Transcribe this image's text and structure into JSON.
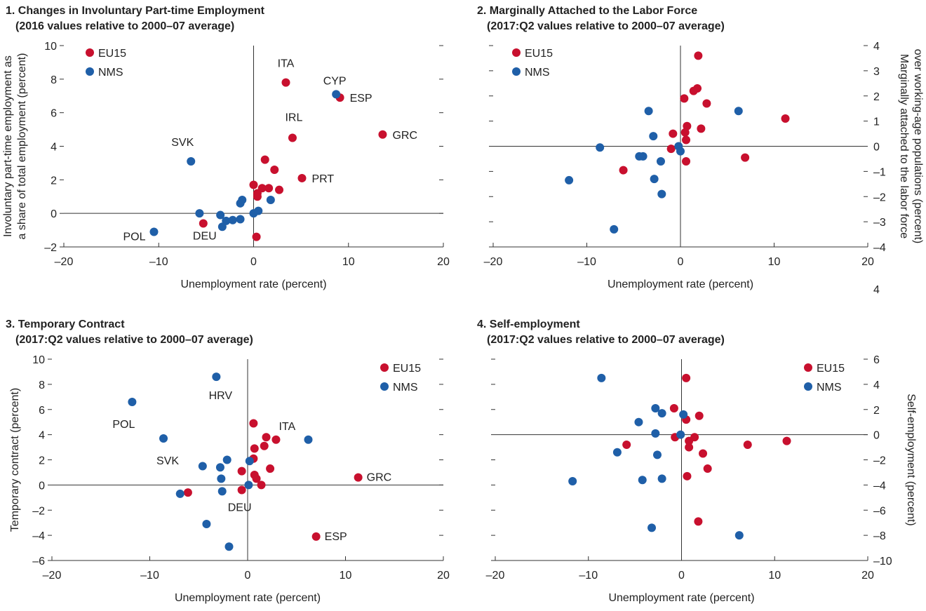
{
  "colors": {
    "EU15": "#c8102e",
    "NMS": "#1f5fa8",
    "axis": "#333333"
  },
  "chart_data": [
    {
      "type": "scatter",
      "title": "1. Changes in Involuntary Part-time Employment",
      "subtitle": "(2016 values relative to 2000–07 average)",
      "xlabel": "Unemployment rate (percent)",
      "ylabel": [
        "Involuntary part-time employment as",
        "a share of total employment (percent)"
      ],
      "xlim": [
        -20,
        20
      ],
      "ylim": [
        -2,
        10
      ],
      "xticks": [
        -20,
        -10,
        0,
        10,
        20
      ],
      "yticks": [
        -2,
        0,
        2,
        4,
        6,
        8,
        10
      ],
      "ytick_labels": [
        "–2",
        "0",
        "2",
        "4",
        "6",
        "8",
        "10"
      ],
      "xtick_labels": [
        "–20",
        "–10",
        "0",
        "10",
        "20"
      ],
      "right_ticks": true,
      "right_tick_labels": [],
      "legend": "top-left",
      "series": [
        {
          "name": "EU15",
          "points": [
            {
              "x": 3.4,
              "y": 7.8,
              "label": "ITA"
            },
            {
              "x": 9.1,
              "y": 6.9,
              "label": "ESP"
            },
            {
              "x": 13.6,
              "y": 4.7,
              "label": "GRC"
            },
            {
              "x": 4.1,
              "y": 4.5,
              "label": "IRL"
            },
            {
              "x": 5.1,
              "y": 2.1,
              "label": "PRT"
            },
            {
              "x": -5.3,
              "y": -0.6,
              "label": "DEU"
            },
            {
              "x": 1.2,
              "y": 3.2,
              "label": ""
            },
            {
              "x": 2.2,
              "y": 2.6,
              "label": ""
            },
            {
              "x": 0.0,
              "y": 1.7,
              "label": ""
            },
            {
              "x": 0.9,
              "y": 1.5,
              "label": ""
            },
            {
              "x": 1.6,
              "y": 1.5,
              "label": ""
            },
            {
              "x": 2.7,
              "y": 1.4,
              "label": ""
            },
            {
              "x": 0.4,
              "y": 1.2,
              "label": ""
            },
            {
              "x": 0.4,
              "y": 1.0,
              "label": ""
            },
            {
              "x": 0.3,
              "y": -1.4,
              "label": ""
            }
          ]
        },
        {
          "name": "NMS",
          "points": [
            {
              "x": 8.7,
              "y": 7.1,
              "label": "CYP"
            },
            {
              "x": -6.6,
              "y": 3.1,
              "label": "SVK"
            },
            {
              "x": -10.5,
              "y": -1.1,
              "label": "POL"
            },
            {
              "x": -1.2,
              "y": 0.8,
              "label": ""
            },
            {
              "x": 1.8,
              "y": 0.8,
              "label": ""
            },
            {
              "x": -1.4,
              "y": 0.6,
              "label": ""
            },
            {
              "x": -5.7,
              "y": 0.0,
              "label": ""
            },
            {
              "x": -3.5,
              "y": -0.1,
              "label": ""
            },
            {
              "x": 0.0,
              "y": 0.0,
              "label": ""
            },
            {
              "x": 0.5,
              "y": 0.15,
              "label": ""
            },
            {
              "x": -2.9,
              "y": -0.45,
              "label": ""
            },
            {
              "x": -2.2,
              "y": -0.4,
              "label": ""
            },
            {
              "x": -1.4,
              "y": -0.35,
              "label": ""
            },
            {
              "x": -3.3,
              "y": -0.8,
              "label": ""
            }
          ]
        }
      ]
    },
    {
      "type": "scatter",
      "title": "2. Marginally Attached to the Labor Force",
      "subtitle": "(2017:Q2 values relative to 2000–07 average)",
      "xlabel": "Unemployment rate (percent)",
      "ylabel_right": [
        "Marginally attached to the labor force",
        "over working-age populations (percent)"
      ],
      "xlim": [
        -20,
        20
      ],
      "ylim": [
        -4,
        4
      ],
      "xticks": [
        -20,
        -10,
        0,
        10,
        20
      ],
      "yticks": [
        -4,
        -3,
        -2,
        -1,
        0,
        1,
        2,
        3,
        4
      ],
      "right_tick_labels": [
        "–4",
        "–3",
        "–2",
        "–1",
        "0",
        "1",
        "2",
        "3",
        "4"
      ],
      "xtick_labels": [
        "–20",
        "–10",
        "0",
        "10",
        "20"
      ],
      "left_ticks": true,
      "extra_label": "4",
      "legend": "top-left",
      "series": [
        {
          "name": "EU15",
          "points": [
            {
              "x": 1.9,
              "y": 3.6,
              "label": ""
            },
            {
              "x": 1.8,
              "y": 2.3,
              "label": ""
            },
            {
              "x": 1.4,
              "y": 2.2,
              "label": ""
            },
            {
              "x": 0.4,
              "y": 1.9,
              "label": ""
            },
            {
              "x": 2.8,
              "y": 1.7,
              "label": ""
            },
            {
              "x": 11.2,
              "y": 1.1,
              "label": ""
            },
            {
              "x": 0.7,
              "y": 0.8,
              "label": ""
            },
            {
              "x": 2.2,
              "y": 0.7,
              "label": ""
            },
            {
              "x": 0.5,
              "y": 0.55,
              "label": ""
            },
            {
              "x": -0.8,
              "y": 0.5,
              "label": ""
            },
            {
              "x": 0.6,
              "y": 0.25,
              "label": ""
            },
            {
              "x": -1.0,
              "y": -0.1,
              "label": ""
            },
            {
              "x": 0.6,
              "y": -0.6,
              "label": ""
            },
            {
              "x": 6.9,
              "y": -0.45,
              "label": ""
            },
            {
              "x": -6.1,
              "y": -0.95,
              "label": ""
            }
          ]
        },
        {
          "name": "NMS",
          "points": [
            {
              "x": -3.4,
              "y": 1.4,
              "label": ""
            },
            {
              "x": 6.2,
              "y": 1.4,
              "label": ""
            },
            {
              "x": -2.9,
              "y": 0.4,
              "label": ""
            },
            {
              "x": -8.6,
              "y": -0.05,
              "label": ""
            },
            {
              "x": -0.2,
              "y": 0.0,
              "label": ""
            },
            {
              "x": 0.0,
              "y": -0.2,
              "label": ""
            },
            {
              "x": -4.4,
              "y": -0.4,
              "label": ""
            },
            {
              "x": -4.0,
              "y": -0.4,
              "label": ""
            },
            {
              "x": -2.1,
              "y": -0.6,
              "label": ""
            },
            {
              "x": -11.9,
              "y": -1.35,
              "label": ""
            },
            {
              "x": -2.8,
              "y": -1.3,
              "label": ""
            },
            {
              "x": -2.0,
              "y": -1.9,
              "label": ""
            },
            {
              "x": -7.1,
              "y": -3.3,
              "label": ""
            }
          ]
        }
      ]
    },
    {
      "type": "scatter",
      "title": "3. Temporary Contract",
      "subtitle": "(2017:Q2 values relative to 2000–07 average)",
      "xlabel": "Unemployment rate (percent)",
      "ylabel": [
        "Temporary contract (percent)"
      ],
      "xlim": [
        -20,
        20
      ],
      "ylim": [
        -6,
        10
      ],
      "xticks": [
        -20,
        -10,
        0,
        10,
        20
      ],
      "yticks": [
        -6,
        -4,
        -2,
        0,
        2,
        4,
        6,
        8,
        10
      ],
      "ytick_labels": [
        "–6",
        "–4",
        "–2",
        "0",
        "2",
        "4",
        "6",
        "8",
        "10"
      ],
      "xtick_labels": [
        "–20",
        "–10",
        "0",
        "10",
        "20"
      ],
      "right_ticks": true,
      "right_tick_labels": [],
      "legend": "top-right",
      "series": [
        {
          "name": "EU15",
          "points": [
            {
              "x": 0.6,
              "y": 4.9,
              "label": ""
            },
            {
              "x": 1.9,
              "y": 3.8,
              "label": ""
            },
            {
              "x": 2.9,
              "y": 3.6,
              "label": "ITA"
            },
            {
              "x": 1.7,
              "y": 3.1,
              "label": ""
            },
            {
              "x": 0.7,
              "y": 2.9,
              "label": ""
            },
            {
              "x": 0.6,
              "y": 2.1,
              "label": ""
            },
            {
              "x": 2.3,
              "y": 1.3,
              "label": ""
            },
            {
              "x": -0.6,
              "y": 1.1,
              "label": ""
            },
            {
              "x": 0.7,
              "y": 0.8,
              "label": ""
            },
            {
              "x": 0.9,
              "y": 0.5,
              "label": ""
            },
            {
              "x": 1.4,
              "y": 0.0,
              "label": ""
            },
            {
              "x": -0.6,
              "y": -0.4,
              "label": "DEU"
            },
            {
              "x": -6.1,
              "y": -0.6,
              "label": ""
            },
            {
              "x": 11.3,
              "y": 0.6,
              "label": "GRC"
            },
            {
              "x": 7.0,
              "y": -4.1,
              "label": "ESP"
            }
          ]
        },
        {
          "name": "NMS",
          "points": [
            {
              "x": -3.2,
              "y": 8.6,
              "label": "HRV"
            },
            {
              "x": -11.8,
              "y": 6.6,
              "label": "POL"
            },
            {
              "x": -8.6,
              "y": 3.7,
              "label": "SVK"
            },
            {
              "x": 6.2,
              "y": 3.6,
              "label": ""
            },
            {
              "x": -2.1,
              "y": 2.0,
              "label": ""
            },
            {
              "x": 0.2,
              "y": 1.9,
              "label": ""
            },
            {
              "x": -4.6,
              "y": 1.5,
              "label": ""
            },
            {
              "x": -2.8,
              "y": 1.4,
              "label": ""
            },
            {
              "x": -2.7,
              "y": 0.5,
              "label": ""
            },
            {
              "x": 0.1,
              "y": 0.0,
              "label": ""
            },
            {
              "x": -2.6,
              "y": -0.5,
              "label": ""
            },
            {
              "x": -6.9,
              "y": -0.7,
              "label": ""
            },
            {
              "x": -4.2,
              "y": -3.1,
              "label": ""
            },
            {
              "x": -1.9,
              "y": -4.9,
              "label": ""
            }
          ]
        }
      ]
    },
    {
      "type": "scatter",
      "title": "4. Self-employment",
      "subtitle": "(2017:Q2 values relative to 2000–07 average)",
      "xlabel": "Unemployment rate (percent)",
      "ylabel_right": [
        "Self-employment (percent)"
      ],
      "xlim": [
        -20,
        20
      ],
      "ylim": [
        -10,
        6
      ],
      "xticks": [
        -20,
        -10,
        0,
        10,
        20
      ],
      "yticks": [
        -10,
        -8,
        -6,
        -4,
        -2,
        0,
        2,
        4,
        6
      ],
      "right_tick_labels": [
        "–10",
        "–8",
        "–6",
        "–4",
        "–2",
        "0",
        "2",
        "4",
        "6"
      ],
      "xtick_labels": [
        "–20",
        "–10",
        "0",
        "10",
        "20"
      ],
      "left_ticks": true,
      "legend": "top-right",
      "series": [
        {
          "name": "EU15",
          "points": [
            {
              "x": 0.5,
              "y": 4.5,
              "label": ""
            },
            {
              "x": -0.8,
              "y": 2.1,
              "label": ""
            },
            {
              "x": 1.9,
              "y": 1.5,
              "label": ""
            },
            {
              "x": 0.5,
              "y": 1.2,
              "label": ""
            },
            {
              "x": -0.7,
              "y": -0.2,
              "label": ""
            },
            {
              "x": 1.4,
              "y": -0.2,
              "label": ""
            },
            {
              "x": 0.8,
              "y": -0.5,
              "label": ""
            },
            {
              "x": 0.8,
              "y": -1.0,
              "label": ""
            },
            {
              "x": -5.9,
              "y": -0.8,
              "label": ""
            },
            {
              "x": 7.1,
              "y": -0.8,
              "label": ""
            },
            {
              "x": 11.3,
              "y": -0.5,
              "label": ""
            },
            {
              "x": 2.3,
              "y": -1.5,
              "label": ""
            },
            {
              "x": 2.8,
              "y": -2.7,
              "label": ""
            },
            {
              "x": 0.6,
              "y": -3.3,
              "label": ""
            },
            {
              "x": 1.8,
              "y": -6.9,
              "label": ""
            }
          ]
        },
        {
          "name": "NMS",
          "points": [
            {
              "x": -8.6,
              "y": 4.5,
              "label": ""
            },
            {
              "x": -2.8,
              "y": 2.1,
              "label": ""
            },
            {
              "x": -2.1,
              "y": 1.7,
              "label": ""
            },
            {
              "x": 0.2,
              "y": 1.6,
              "label": ""
            },
            {
              "x": -4.6,
              "y": 1.0,
              "label": ""
            },
            {
              "x": -2.8,
              "y": 0.1,
              "label": ""
            },
            {
              "x": -0.1,
              "y": 0.0,
              "label": ""
            },
            {
              "x": -6.9,
              "y": -1.4,
              "label": ""
            },
            {
              "x": -2.6,
              "y": -1.6,
              "label": ""
            },
            {
              "x": -11.7,
              "y": -3.7,
              "label": ""
            },
            {
              "x": -4.2,
              "y": -3.6,
              "label": ""
            },
            {
              "x": -2.1,
              "y": -3.5,
              "label": ""
            },
            {
              "x": -3.2,
              "y": -7.4,
              "label": ""
            },
            {
              "x": 6.2,
              "y": -8.0,
              "label": ""
            }
          ]
        }
      ]
    }
  ]
}
